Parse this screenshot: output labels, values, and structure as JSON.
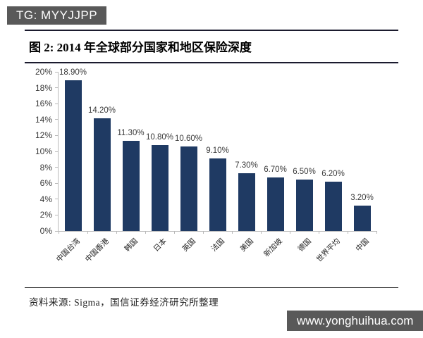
{
  "header": {
    "badge_text": "TG: MYYJJPP"
  },
  "figure": {
    "title": "图 2: 2014 年全球部分国家和地区保险深度"
  },
  "chart_data": {
    "type": "bar",
    "title": "2014 年全球部分国家和地区保险深度",
    "categories": [
      "中国台湾",
      "中国香港",
      "韩国",
      "日本",
      "英国",
      "法国",
      "美国",
      "新加坡",
      "德国",
      "世界平均",
      "中国"
    ],
    "values": [
      18.9,
      14.2,
      11.3,
      10.8,
      10.6,
      9.1,
      7.3,
      6.7,
      6.5,
      6.2,
      3.2
    ],
    "value_labels": [
      "18.90%",
      "14.20%",
      "11.30%",
      "10.80%",
      "10.60%",
      "9.10%",
      "7.30%",
      "6.70%",
      "6.50%",
      "6.20%",
      "3.20%"
    ],
    "xlabel": "",
    "ylabel": "",
    "ylim": [
      0,
      20
    ],
    "ytick_step": 2,
    "ytick_labels": [
      "0%",
      "2%",
      "4%",
      "6%",
      "8%",
      "10%",
      "12%",
      "14%",
      "16%",
      "18%",
      "20%"
    ],
    "grid": false,
    "legend": "none",
    "bar_color": "#1f3a63"
  },
  "footer": {
    "source": "资料来源: Sigma，国信证券经济研究所整理"
  },
  "watermark": {
    "url_text": "www.yonghuihua.com"
  },
  "colors": {
    "badge_bg": "#595959",
    "badge_text": "#ffffff",
    "bar": "#1f3a63",
    "rule": "#1b1b2e",
    "axis": "#b9b9b9",
    "background": "#ffffff"
  }
}
